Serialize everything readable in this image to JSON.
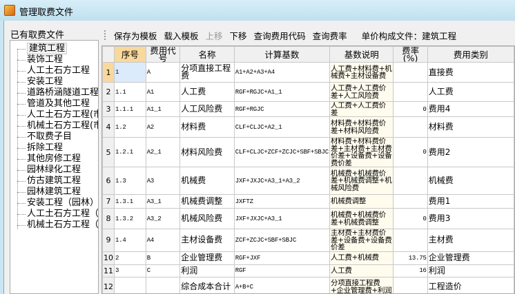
{
  "window": {
    "title": "管理取费文件",
    "icon": "app-icon"
  },
  "left_panel": {
    "title": "已有取费文件",
    "items": [
      "建筑工程",
      "装饰工程",
      "人工土石方工程",
      "安装工程",
      "道路桥涵隧道工程",
      "管道及其他工程",
      "人工土石方工程(市",
      "机械土石方工程(市",
      "不取费子目",
      "拆除工程",
      "其他房修工程",
      "园林绿化工程",
      "仿古建筑工程",
      "园林建筑工程",
      "安装工程（园林）",
      "人工土石方工程（园",
      "机械土石方工程（园"
    ],
    "selected": 0
  },
  "toolbar": {
    "save_template": "保存为模板",
    "load_template": "载入模板",
    "move_up": "上移",
    "move_down": "下移",
    "query_code": "查询费用代码",
    "query_rate": "查询费率",
    "unit_price_label": "单价构成文件：建筑工程"
  },
  "table": {
    "columns": [
      "序号",
      "费用代号",
      "名称",
      "计算基数",
      "基数说明",
      "费率(%)",
      "费用类别"
    ],
    "rows": [
      {
        "n": "1",
        "seq": "1",
        "code": "A",
        "name": "分项直接工程费",
        "base": "A1+A2+A3+A4",
        "desc": "人工费+材料费+机械费+主材设备费",
        "rate": "",
        "cat": "直接费"
      },
      {
        "n": "2",
        "seq": "1.1",
        "code": "A1",
        "name": "人工费",
        "base": "RGF+RGJC+A1_1",
        "desc": "人工费+人工费价差+人工风险费",
        "rate": "",
        "cat": "人工费"
      },
      {
        "n": "3",
        "seq": "1.1.1",
        "code": "A1_1",
        "name": "人工风险费",
        "base": "RGF+RGJC",
        "desc": "人工费+人工费价差",
        "rate": "0",
        "cat": "费用4"
      },
      {
        "n": "4",
        "seq": "1.2",
        "code": "A2",
        "name": "材料费",
        "base": "CLF+CLJC+A2_1",
        "desc": "材料费+材料费价差+材料风险费",
        "rate": "",
        "cat": "材料费"
      },
      {
        "n": "5",
        "seq": "1.2.1",
        "code": "A2_1",
        "name": "材料风险费",
        "base": "CLF+CLJC+ZCF+ZCJC+SBF+SBJC",
        "desc": "材料费+材料费价差+主材费+主材费价差+设备费+设备费价差",
        "rate": "0",
        "cat": "费用2"
      },
      {
        "n": "6",
        "seq": "1.3",
        "code": "A3",
        "name": "机械费",
        "base": "JXF+JXJC+A3_1+A3_2",
        "desc": "机械费+机械费价差+机械费调整+机械风险费",
        "rate": "",
        "cat": "机械费"
      },
      {
        "n": "7",
        "seq": "1.3.1",
        "code": "A3_1",
        "name": "机械费调整",
        "base": "JXFTZ",
        "desc": "机械费调整",
        "rate": "",
        "cat": "费用1"
      },
      {
        "n": "8",
        "seq": "1.3.2",
        "code": "A3_2",
        "name": "机械风险费",
        "base": "JXF+JXJC+A3_1",
        "desc": "机械费+机械费价差+机械费调整",
        "rate": "0",
        "cat": "费用3"
      },
      {
        "n": "9",
        "seq": "1.4",
        "code": "A4",
        "name": "主材设备费",
        "base": "ZCF+ZCJC+SBF+SBJC",
        "desc": "主材费+主材费价差+设备费+设备费价差",
        "rate": "",
        "cat": "主材费"
      },
      {
        "n": "10",
        "seq": "2",
        "code": "B",
        "name": "企业管理费",
        "base": "RGF+JXF",
        "desc": "人工费+机械费",
        "rate": "13.75",
        "cat": "企业管理费"
      },
      {
        "n": "11",
        "seq": "3",
        "code": "C",
        "name": "利润",
        "base": "RGF",
        "desc": "人工费",
        "rate": "16",
        "cat": "利润"
      },
      {
        "n": "12",
        "seq": "",
        "code": "",
        "name": "综合成本合计",
        "base": "A+B+C",
        "desc": "分项直接工程费+企业管理费+利润",
        "rate": "",
        "cat": "工程造价"
      }
    ]
  }
}
